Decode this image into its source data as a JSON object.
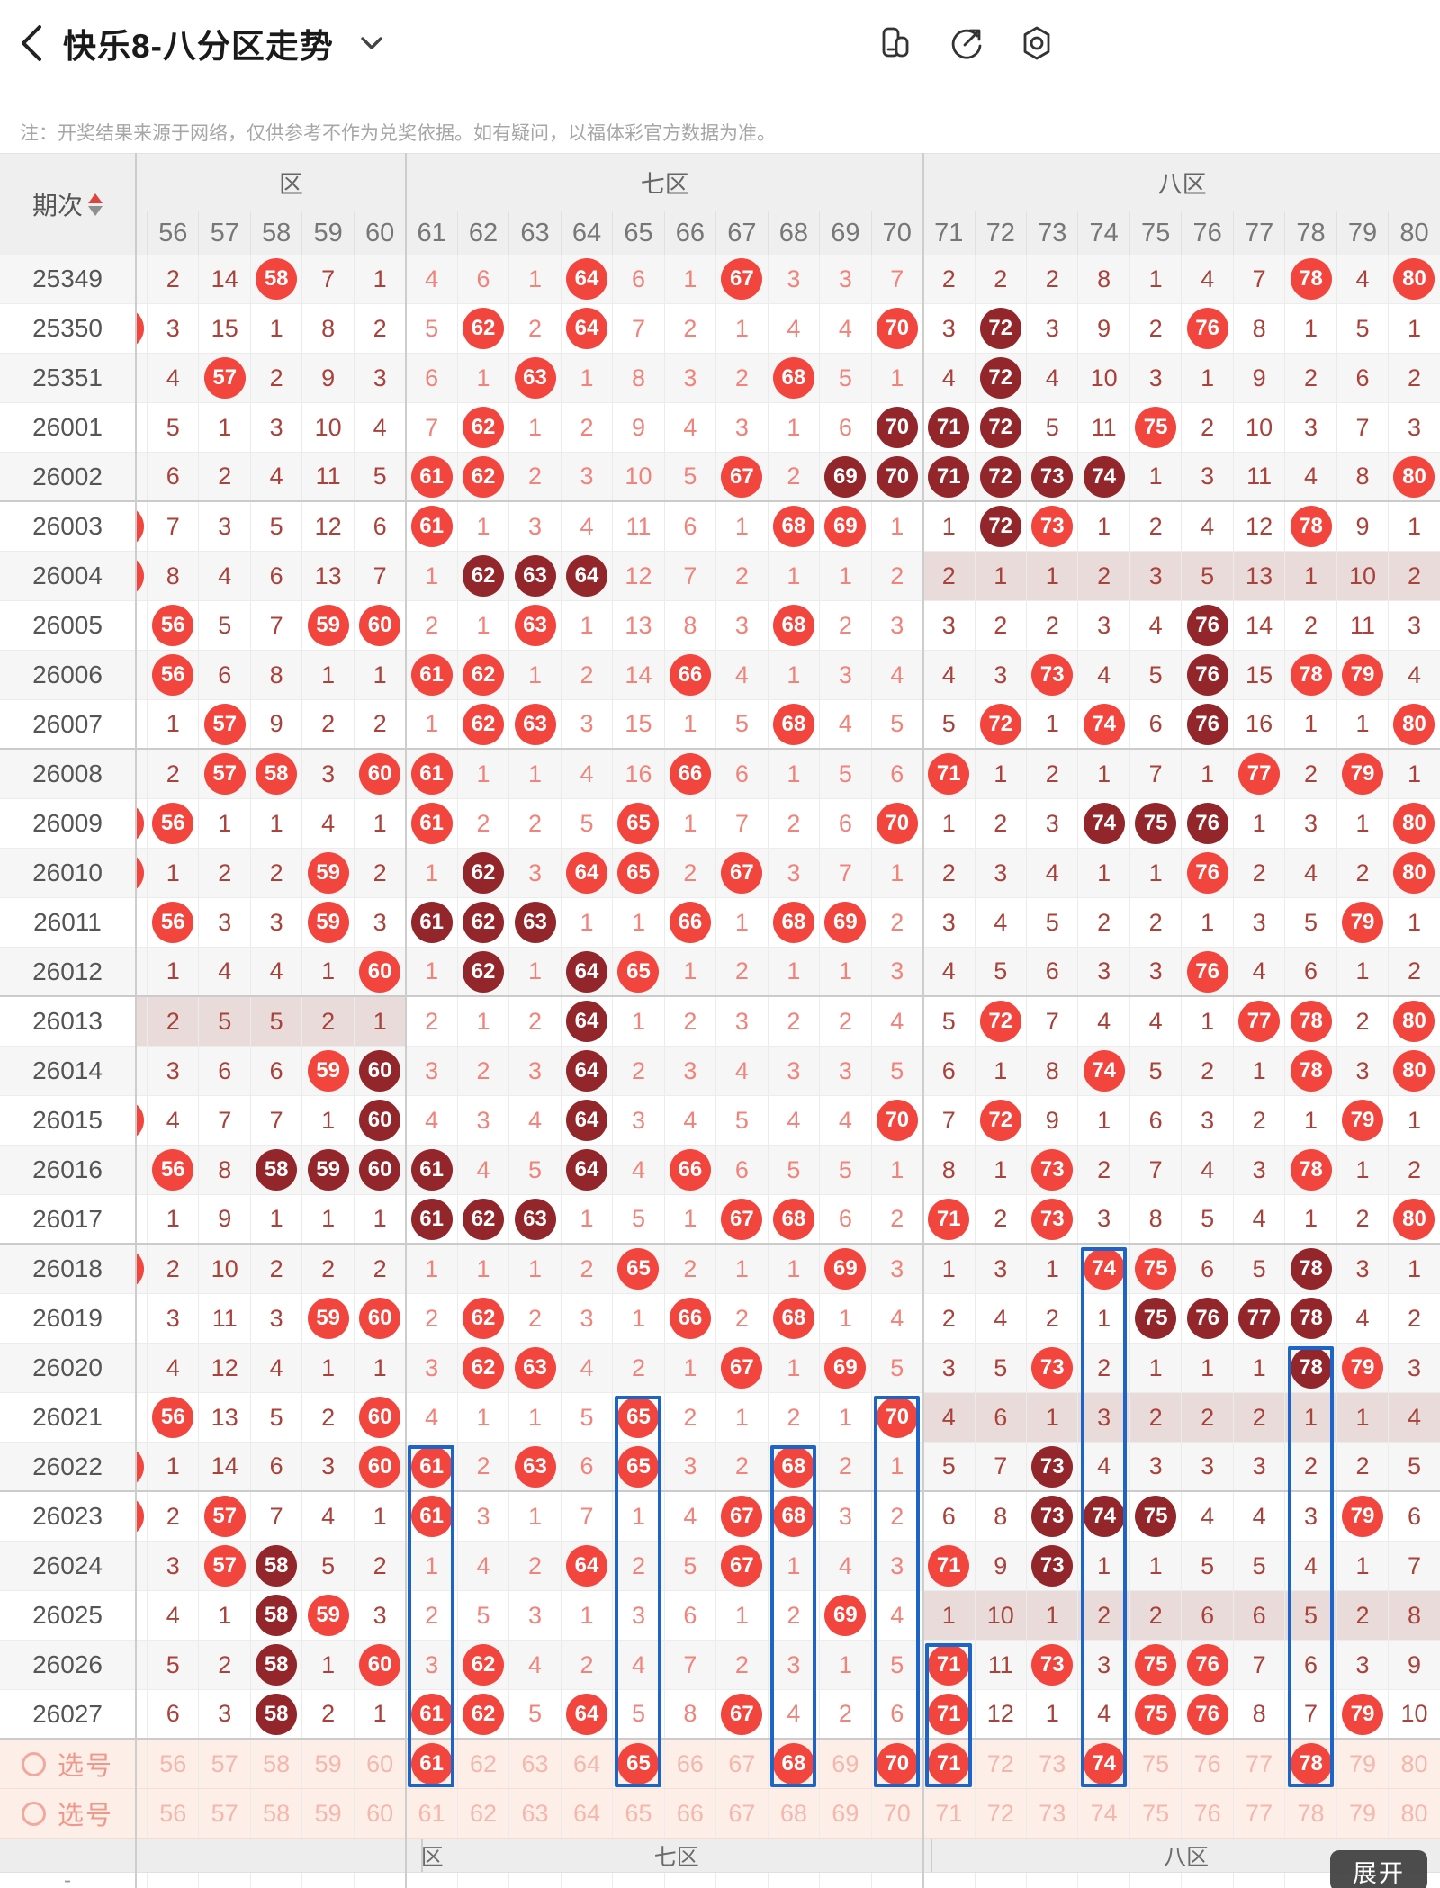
{
  "app": {
    "title": "快乐8-八分区走势",
    "notice": "注：开奖结果来源于网络，仅供参考不作为兑奖依据。如有疑问，以福体彩官方数据为准。",
    "expand_label": "展开"
  },
  "colors": {
    "ball_bright": "#f2453d",
    "ball_dark": "#93262b",
    "count_dark_zone": "#a8423a",
    "count_light_zone": "#f0837a",
    "select_row_bg": "#fdefe7",
    "select_number": "#f4b7ae",
    "zone_missed_bg": "#e9dbd9",
    "selection_box_blue": "#1d64c8"
  },
  "table": {
    "period_header": "期次",
    "select_label": "选号",
    "zones_top": [
      "区",
      "七区",
      "八区"
    ],
    "zones_bottom": [
      "区",
      "七区",
      "八区"
    ],
    "columns": [
      56,
      57,
      58,
      59,
      60,
      61,
      62,
      63,
      64,
      65,
      66,
      67,
      68,
      69,
      70,
      71,
      72,
      73,
      74,
      75,
      76,
      77,
      78,
      79,
      80
    ],
    "rows": [
      {
        "p": "25349",
        "t": "d",
        "s": 0,
        "pz": null,
        "c": [
          "2",
          "14",
          "R58",
          "7",
          "1",
          "4",
          "6",
          "1",
          "R64",
          "6",
          "1",
          "R67",
          "3",
          "3",
          "7",
          "2",
          "2",
          "2",
          "8",
          "1",
          "4",
          "7",
          "R78",
          "4",
          "R80"
        ]
      },
      {
        "p": "25350",
        "t": "d",
        "s": 1,
        "pz": null,
        "c": [
          "3",
          "15",
          "1",
          "8",
          "2",
          "5",
          "R62",
          "2",
          "R64",
          "7",
          "2",
          "1",
          "4",
          "4",
          "R70",
          "3",
          "D72",
          "3",
          "9",
          "2",
          "R76",
          "8",
          "1",
          "5",
          "1"
        ]
      },
      {
        "p": "25351",
        "t": "d",
        "s": 0,
        "pz": null,
        "c": [
          "4",
          "R57",
          "2",
          "9",
          "3",
          "6",
          "1",
          "R63",
          "1",
          "8",
          "3",
          "2",
          "R68",
          "5",
          "1",
          "4",
          "D72",
          "4",
          "10",
          "3",
          "1",
          "9",
          "2",
          "6",
          "2"
        ]
      },
      {
        "p": "26001",
        "t": "d",
        "s": 0,
        "pz": null,
        "c": [
          "5",
          "1",
          "3",
          "10",
          "4",
          "7",
          "R62",
          "1",
          "2",
          "9",
          "4",
          "3",
          "1",
          "6",
          "D70",
          "D71",
          "D72",
          "5",
          "11",
          "R75",
          "2",
          "10",
          "3",
          "7",
          "3"
        ]
      },
      {
        "p": "26002",
        "t": "d",
        "s": 0,
        "pz": null,
        "c": [
          "6",
          "2",
          "4",
          "11",
          "5",
          "R61",
          "R62",
          "2",
          "3",
          "10",
          "5",
          "R67",
          "2",
          "D69",
          "D70",
          "D71",
          "D72",
          "D73",
          "D74",
          "1",
          "3",
          "11",
          "4",
          "8",
          "R80"
        ]
      },
      {
        "p": "26003",
        "t": "d",
        "s": 1,
        "pz": null,
        "c": [
          "7",
          "3",
          "5",
          "12",
          "6",
          "R61",
          "1",
          "3",
          "4",
          "11",
          "6",
          "1",
          "R68",
          "R69",
          "1",
          "1",
          "D72",
          "R73",
          "1",
          "2",
          "4",
          "12",
          "R78",
          "9",
          "1"
        ]
      },
      {
        "p": "26004",
        "t": "d",
        "s": 1,
        "pz": 2,
        "c": [
          "8",
          "4",
          "6",
          "13",
          "7",
          "1",
          "D62",
          "D63",
          "D64",
          "12",
          "7",
          "2",
          "1",
          "1",
          "2",
          "2",
          "1",
          "1",
          "2",
          "3",
          "5",
          "13",
          "1",
          "10",
          "2"
        ]
      },
      {
        "p": "26005",
        "t": "d",
        "s": 0,
        "pz": null,
        "c": [
          "R56",
          "5",
          "7",
          "R59",
          "R60",
          "2",
          "1",
          "R63",
          "1",
          "13",
          "8",
          "3",
          "R68",
          "2",
          "3",
          "3",
          "2",
          "2",
          "3",
          "4",
          "D76",
          "14",
          "2",
          "11",
          "3"
        ]
      },
      {
        "p": "26006",
        "t": "d",
        "s": 0,
        "pz": null,
        "c": [
          "R56",
          "6",
          "8",
          "1",
          "1",
          "R61",
          "R62",
          "1",
          "2",
          "14",
          "R66",
          "4",
          "1",
          "3",
          "4",
          "4",
          "3",
          "R73",
          "4",
          "5",
          "D76",
          "15",
          "R78",
          "R79",
          "4"
        ]
      },
      {
        "p": "26007",
        "t": "d",
        "s": 0,
        "pz": null,
        "c": [
          "1",
          "R57",
          "9",
          "2",
          "2",
          "1",
          "R62",
          "R63",
          "3",
          "15",
          "1",
          "5",
          "R68",
          "4",
          "5",
          "5",
          "R72",
          "1",
          "R74",
          "6",
          "D76",
          "16",
          "1",
          "1",
          "R80"
        ]
      },
      {
        "p": "26008",
        "t": "d",
        "s": 0,
        "pz": null,
        "c": [
          "2",
          "R57",
          "R58",
          "3",
          "R60",
          "R61",
          "1",
          "1",
          "4",
          "16",
          "R66",
          "6",
          "1",
          "5",
          "6",
          "R71",
          "1",
          "2",
          "1",
          "7",
          "1",
          "R77",
          "2",
          "R79",
          "1"
        ]
      },
      {
        "p": "26009",
        "t": "d",
        "s": 1,
        "pz": null,
        "c": [
          "R56",
          "1",
          "1",
          "4",
          "1",
          "R61",
          "2",
          "2",
          "5",
          "R65",
          "1",
          "7",
          "2",
          "6",
          "R70",
          "1",
          "2",
          "3",
          "D74",
          "D75",
          "D76",
          "1",
          "3",
          "1",
          "R80"
        ]
      },
      {
        "p": "26010",
        "t": "d",
        "s": 1,
        "pz": null,
        "c": [
          "1",
          "2",
          "2",
          "R59",
          "2",
          "1",
          "D62",
          "3",
          "R64",
          "R65",
          "2",
          "R67",
          "3",
          "7",
          "1",
          "2",
          "3",
          "4",
          "1",
          "1",
          "R76",
          "2",
          "4",
          "2",
          "R80"
        ]
      },
      {
        "p": "26011",
        "t": "d",
        "s": 0,
        "pz": null,
        "c": [
          "R56",
          "3",
          "3",
          "R59",
          "3",
          "D61",
          "D62",
          "D63",
          "1",
          "1",
          "R66",
          "1",
          "R68",
          "R69",
          "2",
          "3",
          "4",
          "5",
          "2",
          "2",
          "1",
          "3",
          "5",
          "R79",
          "1"
        ]
      },
      {
        "p": "26012",
        "t": "d",
        "s": 0,
        "pz": null,
        "c": [
          "1",
          "4",
          "4",
          "1",
          "R60",
          "1",
          "D62",
          "1",
          "D64",
          "R65",
          "1",
          "2",
          "1",
          "1",
          "3",
          "4",
          "5",
          "6",
          "3",
          "3",
          "R76",
          "4",
          "6",
          "1",
          "2"
        ]
      },
      {
        "p": "26013",
        "t": "d",
        "s": 0,
        "pz": 0,
        "c": [
          "2",
          "5",
          "5",
          "2",
          "1",
          "2",
          "1",
          "2",
          "D64",
          "1",
          "2",
          "3",
          "2",
          "2",
          "4",
          "5",
          "R72",
          "7",
          "4",
          "4",
          "1",
          "R77",
          "R78",
          "2",
          "R80"
        ]
      },
      {
        "p": "26014",
        "t": "d",
        "s": 0,
        "pz": null,
        "c": [
          "3",
          "6",
          "6",
          "R59",
          "D60",
          "3",
          "2",
          "3",
          "D64",
          "2",
          "3",
          "4",
          "3",
          "3",
          "5",
          "6",
          "1",
          "8",
          "R74",
          "5",
          "2",
          "1",
          "R78",
          "3",
          "R80"
        ]
      },
      {
        "p": "26015",
        "t": "d",
        "s": 1,
        "pz": null,
        "c": [
          "4",
          "7",
          "7",
          "1",
          "D60",
          "4",
          "3",
          "4",
          "D64",
          "3",
          "4",
          "5",
          "4",
          "4",
          "R70",
          "7",
          "R72",
          "9",
          "1",
          "6",
          "3",
          "2",
          "1",
          "R79",
          "1"
        ]
      },
      {
        "p": "26016",
        "t": "d",
        "s": 0,
        "pz": null,
        "c": [
          "R56",
          "8",
          "D58",
          "D59",
          "D60",
          "D61",
          "4",
          "5",
          "D64",
          "4",
          "R66",
          "6",
          "5",
          "5",
          "1",
          "8",
          "1",
          "R73",
          "2",
          "7",
          "4",
          "3",
          "R78",
          "1",
          "2"
        ]
      },
      {
        "p": "26017",
        "t": "d",
        "s": 0,
        "pz": null,
        "c": [
          "1",
          "9",
          "1",
          "1",
          "1",
          "D61",
          "D62",
          "D63",
          "1",
          "5",
          "1",
          "R67",
          "R68",
          "6",
          "2",
          "R71",
          "2",
          "R73",
          "3",
          "8",
          "5",
          "4",
          "1",
          "2",
          "R80"
        ]
      },
      {
        "p": "26018",
        "t": "d",
        "s": 1,
        "pz": null,
        "c": [
          "2",
          "10",
          "2",
          "2",
          "2",
          "1",
          "1",
          "1",
          "2",
          "R65",
          "2",
          "1",
          "1",
          "R69",
          "3",
          "1",
          "3",
          "1",
          "R74",
          "R75",
          "6",
          "5",
          "D78",
          "3",
          "1"
        ]
      },
      {
        "p": "26019",
        "t": "d",
        "s": 0,
        "pz": null,
        "c": [
          "3",
          "11",
          "3",
          "R59",
          "R60",
          "2",
          "R62",
          "2",
          "3",
          "1",
          "R66",
          "2",
          "R68",
          "1",
          "4",
          "2",
          "4",
          "2",
          "1",
          "D75",
          "D76",
          "D77",
          "D78",
          "4",
          "2"
        ]
      },
      {
        "p": "26020",
        "t": "d",
        "s": 0,
        "pz": null,
        "c": [
          "4",
          "12",
          "4",
          "1",
          "1",
          "3",
          "R62",
          "R63",
          "4",
          "2",
          "1",
          "R67",
          "1",
          "R69",
          "5",
          "3",
          "5",
          "R73",
          "2",
          "1",
          "1",
          "1",
          "D78",
          "R79",
          "3"
        ]
      },
      {
        "p": "26021",
        "t": "d",
        "s": 0,
        "pz": 2,
        "c": [
          "R56",
          "13",
          "5",
          "2",
          "R60",
          "4",
          "1",
          "1",
          "5",
          "R65",
          "2",
          "1",
          "2",
          "1",
          "R70",
          "4",
          "6",
          "1",
          "3",
          "2",
          "2",
          "2",
          "1",
          "1",
          "4"
        ]
      },
      {
        "p": "26022",
        "t": "d",
        "s": 1,
        "pz": null,
        "c": [
          "1",
          "14",
          "6",
          "3",
          "R60",
          "R61",
          "2",
          "R63",
          "6",
          "R65",
          "3",
          "2",
          "R68",
          "2",
          "1",
          "5",
          "7",
          "D73",
          "4",
          "3",
          "3",
          "3",
          "2",
          "2",
          "5"
        ]
      },
      {
        "p": "26023",
        "t": "d",
        "s": 1,
        "pz": null,
        "c": [
          "2",
          "R57",
          "7",
          "4",
          "1",
          "R61",
          "3",
          "1",
          "7",
          "1",
          "4",
          "R67",
          "R68",
          "3",
          "2",
          "6",
          "8",
          "D73",
          "D74",
          "D75",
          "4",
          "4",
          "3",
          "R79",
          "6"
        ]
      },
      {
        "p": "26024",
        "t": "d",
        "s": 0,
        "pz": null,
        "c": [
          "3",
          "R57",
          "D58",
          "5",
          "2",
          "1",
          "4",
          "2",
          "R64",
          "2",
          "5",
          "R67",
          "1",
          "4",
          "3",
          "R71",
          "9",
          "D73",
          "1",
          "1",
          "5",
          "5",
          "4",
          "1",
          "7"
        ]
      },
      {
        "p": "26025",
        "t": "d",
        "s": 0,
        "pz": 2,
        "c": [
          "4",
          "1",
          "D58",
          "R59",
          "3",
          "2",
          "5",
          "3",
          "1",
          "3",
          "6",
          "1",
          "2",
          "R69",
          "4",
          "1",
          "10",
          "1",
          "2",
          "2",
          "6",
          "6",
          "5",
          "2",
          "8"
        ]
      },
      {
        "p": "26026",
        "t": "d",
        "s": 0,
        "pz": null,
        "c": [
          "5",
          "2",
          "D58",
          "1",
          "R60",
          "3",
          "R62",
          "4",
          "2",
          "4",
          "7",
          "2",
          "3",
          "1",
          "5",
          "R71",
          "11",
          "R73",
          "3",
          "R75",
          "R76",
          "7",
          "6",
          "3",
          "9"
        ]
      },
      {
        "p": "26027",
        "t": "d",
        "s": 0,
        "pz": null,
        "c": [
          "6",
          "3",
          "D58",
          "2",
          "1",
          "R61",
          "R62",
          "5",
          "R64",
          "5",
          "8",
          "R67",
          "4",
          "2",
          "6",
          "R71",
          "12",
          "1",
          "4",
          "R75",
          "R76",
          "8",
          "7",
          "R79",
          "10"
        ]
      },
      {
        "p": "选号",
        "t": "s",
        "s": 0,
        "pz": null,
        "c": [
          "56",
          "57",
          "58",
          "59",
          "60",
          "R61",
          "62",
          "63",
          "64",
          "R65",
          "66",
          "67",
          "R68",
          "69",
          "R70",
          "R71",
          "72",
          "73",
          "R74",
          "75",
          "76",
          "77",
          "R78",
          "79",
          "80"
        ]
      },
      {
        "p": "选号",
        "t": "s",
        "s": 0,
        "pz": null,
        "c": [
          "56",
          "57",
          "58",
          "59",
          "60",
          "61",
          "62",
          "63",
          "64",
          "65",
          "66",
          "67",
          "68",
          "69",
          "70",
          "71",
          "72",
          "73",
          "74",
          "75",
          "76",
          "77",
          "78",
          "79",
          "80"
        ]
      }
    ],
    "blue_boxes": [
      {
        "col": 61,
        "from_period": "26022",
        "from_row_index": 24
      },
      {
        "col": 65,
        "from_period": "26021",
        "from_row_index": 23
      },
      {
        "col": 68,
        "from_period": "26022",
        "from_row_index": 24
      },
      {
        "col": 70,
        "from_period": "26021",
        "from_row_index": 23
      },
      {
        "col": 71,
        "from_period": "26026",
        "from_row_index": 28
      },
      {
        "col": 74,
        "from_period": "26018",
        "from_row_index": 20
      },
      {
        "col": 78,
        "from_period": "26020",
        "from_row_index": 22
      }
    ],
    "bottom_partial_cell": "-"
  }
}
